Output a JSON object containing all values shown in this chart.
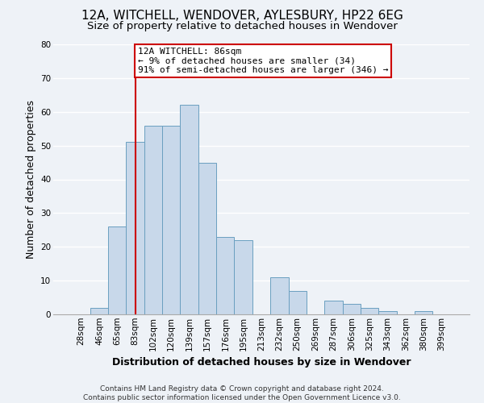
{
  "title": "12A, WITCHELL, WENDOVER, AYLESBURY, HP22 6EG",
  "subtitle": "Size of property relative to detached houses in Wendover",
  "xlabel": "Distribution of detached houses by size in Wendover",
  "ylabel": "Number of detached properties",
  "bar_labels": [
    "28sqm",
    "46sqm",
    "65sqm",
    "83sqm",
    "102sqm",
    "120sqm",
    "139sqm",
    "157sqm",
    "176sqm",
    "195sqm",
    "213sqm",
    "232sqm",
    "250sqm",
    "269sqm",
    "287sqm",
    "306sqm",
    "325sqm",
    "343sqm",
    "362sqm",
    "380sqm",
    "399sqm"
  ],
  "bar_values": [
    0,
    2,
    26,
    51,
    56,
    56,
    62,
    45,
    23,
    22,
    0,
    11,
    7,
    0,
    4,
    3,
    2,
    1,
    0,
    1,
    0
  ],
  "bar_color": "#c8d8ea",
  "bar_edge_color": "#6a9fc0",
  "vline_x_idx": 3,
  "vline_color": "#cc0000",
  "annotation_text": "12A WITCHELL: 86sqm\n← 9% of detached houses are smaller (34)\n91% of semi-detached houses are larger (346) →",
  "annotation_box_color": "white",
  "annotation_box_edge_color": "#cc0000",
  "ylim": [
    0,
    80
  ],
  "yticks": [
    0,
    10,
    20,
    30,
    40,
    50,
    60,
    70,
    80
  ],
  "footer_line1": "Contains HM Land Registry data © Crown copyright and database right 2024.",
  "footer_line2": "Contains public sector information licensed under the Open Government Licence v3.0.",
  "background_color": "#eef2f7",
  "plot_bg_color": "#eef2f7",
  "grid_color": "white",
  "title_fontsize": 11,
  "subtitle_fontsize": 9.5,
  "label_fontsize": 9,
  "tick_fontsize": 7.5,
  "footer_fontsize": 6.5,
  "annotation_fontsize": 8
}
